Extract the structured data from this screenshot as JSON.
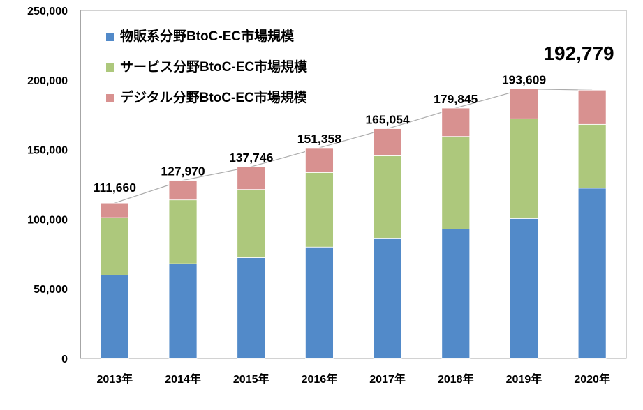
{
  "chart_data": {
    "type": "bar",
    "stacked": true,
    "title": "",
    "categories": [
      "2013年",
      "2014年",
      "2015年",
      "2016年",
      "2017年",
      "2018年",
      "2019年",
      "2020年"
    ],
    "series": [
      {
        "name": "物販系分野BtoC-EC市場規模",
        "color": "#528AC9",
        "values": [
          59931,
          68043,
          72398,
          80043,
          86008,
          92992,
          100515,
          122333
        ]
      },
      {
        "name": "サービス分野BtoC-EC市場規模",
        "color": "#ADC87C",
        "values": [
          41210,
          45845,
          49014,
          53532,
          59568,
          66471,
          71672,
          45832
        ]
      },
      {
        "name": "デジタル分野BtoC-EC市場規模",
        "color": "#D89190",
        "values": [
          10519,
          14082,
          16334,
          17783,
          19478,
          20382,
          21422,
          24614
        ]
      }
    ],
    "totals": {
      "values": [
        111660,
        127970,
        137746,
        151358,
        165054,
        179845,
        193609,
        192779
      ],
      "labels": [
        "111,660",
        "127,970",
        "137,746",
        "151,358",
        "165,054",
        "179,845",
        "193,609",
        "192,779"
      ],
      "line_color": "#ACACAC",
      "emphasized_last": true
    },
    "y_axis": {
      "min": 0,
      "max": 250000,
      "ticks": [
        0,
        50000,
        100000,
        150000,
        200000,
        250000
      ],
      "tick_labels": [
        "0",
        "50,000",
        "100,000",
        "150,000",
        "200,000",
        "250,000"
      ]
    },
    "grid": false,
    "legend_position": "top-left-inside",
    "colors": {
      "text": "#000000",
      "plot_border": "#A6A6A6",
      "background": "#FFFFFF"
    }
  }
}
